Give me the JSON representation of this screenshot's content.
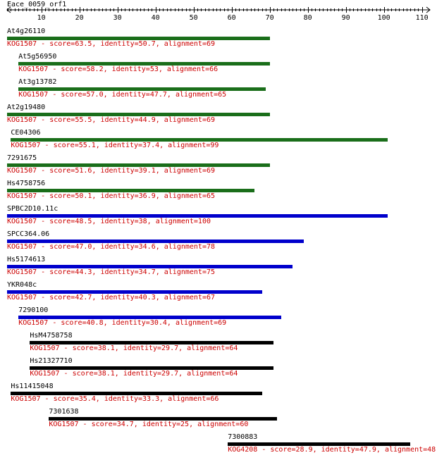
{
  "query": {
    "name": "Eace_0059_orf1",
    "length": 110,
    "ticks": [
      10,
      20,
      30,
      40,
      50,
      60,
      70,
      80,
      90,
      100,
      110
    ]
  },
  "colors": {
    "green": "#1a6e1a",
    "blue": "#0000cc",
    "black": "#000000",
    "score_text": "#cc0000",
    "ruler": "#000000"
  },
  "hits": [
    {
      "name": "At4g26110",
      "score_text": "KOG1507 - score=63.5, identity=50.7, alignment=69",
      "start": 1,
      "end": 70,
      "color": "green"
    },
    {
      "name": "At5g56950",
      "score_text": "KOG1507 - score=58.2, identity=53, alignment=66",
      "start": 4,
      "end": 70,
      "color": "green"
    },
    {
      "name": "At3g13782",
      "score_text": "KOG1507 - score=57.0, identity=47.7, alignment=65",
      "start": 4,
      "end": 69,
      "color": "green"
    },
    {
      "name": "At2g19480",
      "score_text": "KOG1507 - score=55.5, identity=44.9, alignment=69",
      "start": 1,
      "end": 70,
      "color": "green"
    },
    {
      "name": "CE04306",
      "score_text": "KOG1507 - score=55.1, identity=37.4, alignment=99",
      "start": 2,
      "end": 101,
      "color": "green"
    },
    {
      "name": "7291675",
      "score_text": "KOG1507 - score=51.6, identity=39.1, alignment=69",
      "start": 1,
      "end": 70,
      "color": "green"
    },
    {
      "name": "Hs4758756",
      "score_text": "KOG1507 - score=50.1, identity=36.9, alignment=65",
      "start": 1,
      "end": 66,
      "color": "green"
    },
    {
      "name": "SPBC2D10.11c",
      "score_text": "KOG1507 - score=48.5, identity=38, alignment=100",
      "start": 1,
      "end": 101,
      "color": "blue"
    },
    {
      "name": "SPCC364.06",
      "score_text": "KOG1507 - score=47.0, identity=34.6, alignment=78",
      "start": 1,
      "end": 79,
      "color": "blue"
    },
    {
      "name": "Hs5174613",
      "score_text": "KOG1507 - score=44.3, identity=34.7, alignment=75",
      "start": 1,
      "end": 76,
      "color": "blue"
    },
    {
      "name": "YKR048c",
      "score_text": "KOG1507 - score=42.7, identity=40.3, alignment=67",
      "start": 1,
      "end": 68,
      "color": "blue"
    },
    {
      "name": "7290100",
      "score_text": "KOG1507 - score=40.8, identity=30.4, alignment=69",
      "start": 4,
      "end": 73,
      "color": "blue"
    },
    {
      "name": "HsM4758758",
      "score_text": "KOG1507 - score=38.1, identity=29.7, alignment=64",
      "start": 7,
      "end": 71,
      "color": "black"
    },
    {
      "name": "Hs21327710",
      "score_text": "KOG1507 - score=38.1, identity=29.7, alignment=64",
      "start": 7,
      "end": 71,
      "color": "black"
    },
    {
      "name": "Hs11415048",
      "score_text": "KOG1507 - score=35.4, identity=33.3, alignment=66",
      "start": 2,
      "end": 68,
      "color": "black"
    },
    {
      "name": "7301638",
      "score_text": "KOG1507 - score=34.7, identity=25, alignment=60",
      "start": 12,
      "end": 72,
      "color": "black"
    },
    {
      "name": "7300883",
      "score_text": "KOG4208 - score=28.9, identity=47.9, alignment=48",
      "start": 59,
      "end": 107,
      "color": "black"
    }
  ]
}
